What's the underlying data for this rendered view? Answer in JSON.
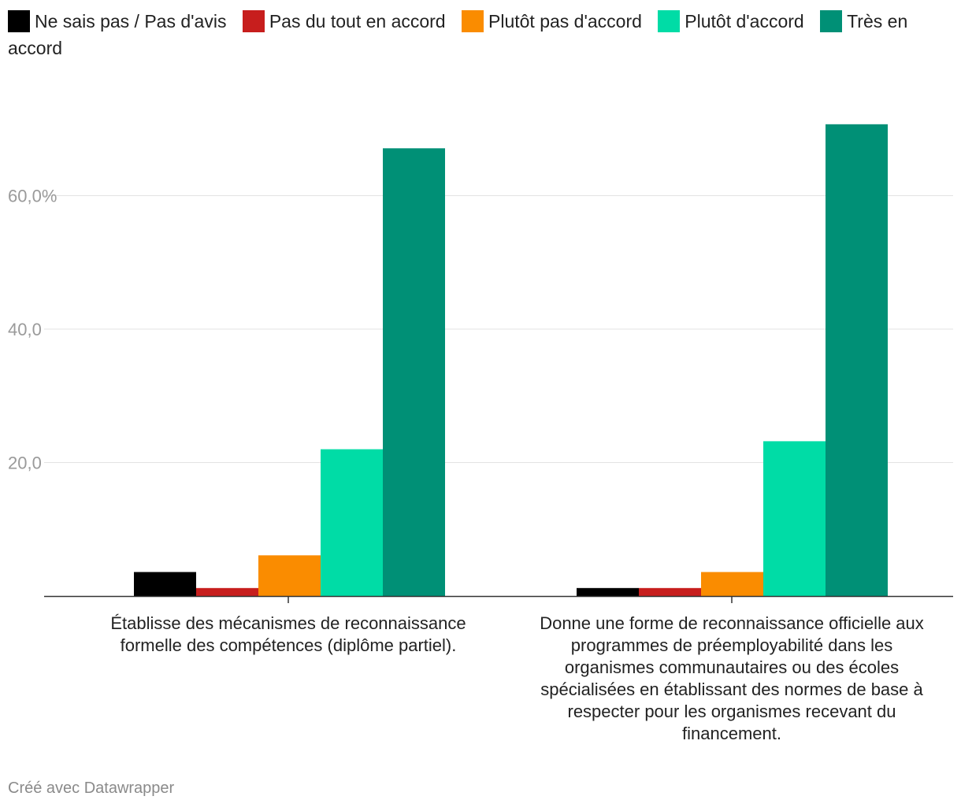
{
  "legend": [
    {
      "label": "Ne sais pas / Pas d'avis",
      "color": "#000000"
    },
    {
      "label": "Pas du tout en accord",
      "color": "#c71e1d"
    },
    {
      "label": "Plutôt pas d'accord",
      "color": "#fa8c00"
    },
    {
      "label": "Plutôt d'accord",
      "color": "#00dca6"
    },
    {
      "label": "Très en accord",
      "color": "#009076"
    }
  ],
  "footer": "Créé avec Datawrapper",
  "chart_data": {
    "type": "bar",
    "categories": [
      "Établisse des mécanismes de reconnaissance formelle des compétences (diplôme partiel).",
      "Donne une forme de reconnaissance officielle aux programmes de préemployabilité dans les organismes communautaires ou des écoles spécialisées en établissant des normes de base à respecter pour les organismes recevant du financement."
    ],
    "series": [
      {
        "name": "Ne sais pas / Pas d'avis",
        "color": "#000000",
        "values": [
          3.6,
          1.2
        ]
      },
      {
        "name": "Pas du tout en accord",
        "color": "#c71e1d",
        "values": [
          1.2,
          1.2
        ]
      },
      {
        "name": "Plutôt pas d'accord",
        "color": "#fa8c00",
        "values": [
          6.1,
          3.6
        ]
      },
      {
        "name": "Plutôt d'accord",
        "color": "#00dca6",
        "values": [
          22.0,
          23.2
        ]
      },
      {
        "name": "Très en accord",
        "color": "#009076",
        "values": [
          67.1,
          70.7
        ]
      }
    ],
    "yticks": [
      20,
      40,
      60
    ],
    "ytick_labels": [
      "20,0",
      "40,0",
      "60,0%"
    ],
    "ylim": [
      0,
      72
    ],
    "title": "",
    "xlabel": "",
    "ylabel": "",
    "grid": true,
    "legend_position": "top"
  }
}
